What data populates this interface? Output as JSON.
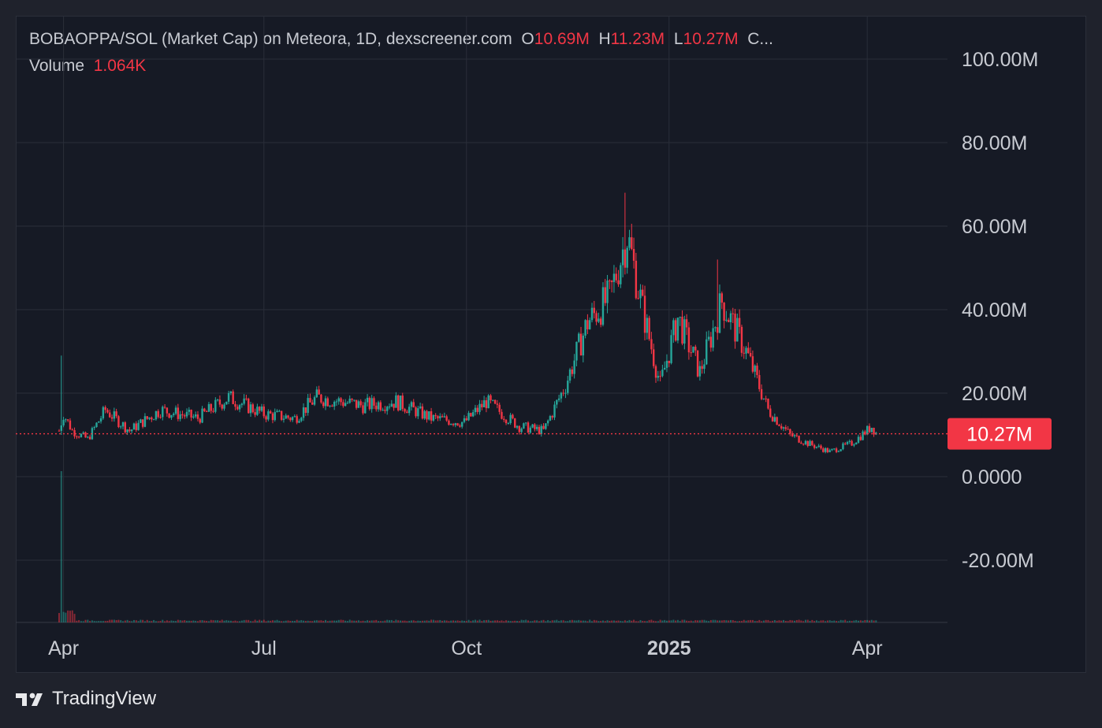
{
  "legend": {
    "symbol": "BOBAOPPA/SOL (Market Cap) on Meteora, 1D, dexscreener.com",
    "o_label": "O",
    "o_value": "10.69M",
    "h_label": "H",
    "h_value": "11.23M",
    "l_label": "L",
    "l_value": "10.27M",
    "c_label": "C...",
    "volume_label": "Volume",
    "volume_value": "1.064K"
  },
  "branding": {
    "name": "TradingView"
  },
  "colors": {
    "up": "#26a69a",
    "down": "#f23645",
    "background": "#161a25",
    "grid": "#2a2e39",
    "text": "#c8cbd2"
  },
  "chart_data": {
    "type": "candlestick",
    "x_ticks": [
      {
        "label": "Apr",
        "date": "2024-04-01"
      },
      {
        "label": "Jul",
        "date": "2024-07-01"
      },
      {
        "label": "Oct",
        "date": "2024-10-01"
      },
      {
        "label": "2025",
        "date": "2025-01-01",
        "bold": true
      },
      {
        "label": "Apr",
        "date": "2025-04-01"
      }
    ],
    "y_ticks": [
      "100.00M",
      "80.00M",
      "60.00M",
      "40.00M",
      "20.00M",
      "0.0000",
      "-20.00M"
    ],
    "y_tick_values": [
      100,
      80,
      60,
      40,
      20,
      0,
      -20
    ],
    "ylim": [
      -35,
      107
    ],
    "x_range": [
      "2024-03-30",
      "2025-04-26"
    ],
    "last_price": 10.27,
    "last_price_label": "10.27M",
    "series_unit": "M",
    "close_anchors": [
      [
        "2024-03-30",
        11
      ],
      [
        "2024-04-01",
        15
      ],
      [
        "2024-04-05",
        11
      ],
      [
        "2024-04-12",
        9
      ],
      [
        "2024-04-20",
        16
      ],
      [
        "2024-05-01",
        11
      ],
      [
        "2024-05-15",
        16
      ],
      [
        "2024-06-01",
        14
      ],
      [
        "2024-06-15",
        19
      ],
      [
        "2024-07-01",
        15
      ],
      [
        "2024-07-15",
        14
      ],
      [
        "2024-07-25",
        19
      ],
      [
        "2024-08-05",
        18
      ],
      [
        "2024-08-15",
        17
      ],
      [
        "2024-08-30",
        18
      ],
      [
        "2024-09-15",
        14
      ],
      [
        "2024-09-30",
        13
      ],
      [
        "2024-10-10",
        18
      ],
      [
        "2024-10-25",
        12
      ],
      [
        "2024-11-05",
        11
      ],
      [
        "2024-11-15",
        22
      ],
      [
        "2024-11-25",
        37
      ],
      [
        "2024-12-05",
        43
      ],
      [
        "2024-12-13",
        58
      ],
      [
        "2024-12-20",
        40
      ],
      [
        "2024-12-28",
        22
      ],
      [
        "2025-01-05",
        38
      ],
      [
        "2025-01-15",
        25
      ],
      [
        "2025-01-25",
        42
      ],
      [
        "2025-02-05",
        30
      ],
      [
        "2025-02-15",
        16
      ],
      [
        "2025-02-25",
        10
      ],
      [
        "2025-03-05",
        8
      ],
      [
        "2025-03-15",
        6
      ],
      [
        "2025-03-25",
        8
      ],
      [
        "2025-04-03",
        12
      ],
      [
        "2025-04-05",
        10.5
      ]
    ],
    "spikes": [
      {
        "date": "2024-03-31",
        "high": 29,
        "low": 10
      },
      {
        "date": "2024-12-12",
        "high": 68,
        "low": 55
      },
      {
        "date": "2025-01-23",
        "high": 52,
        "low": 38
      }
    ],
    "volume_spike": {
      "date": "2024-03-31",
      "value": "1.064K"
    }
  }
}
